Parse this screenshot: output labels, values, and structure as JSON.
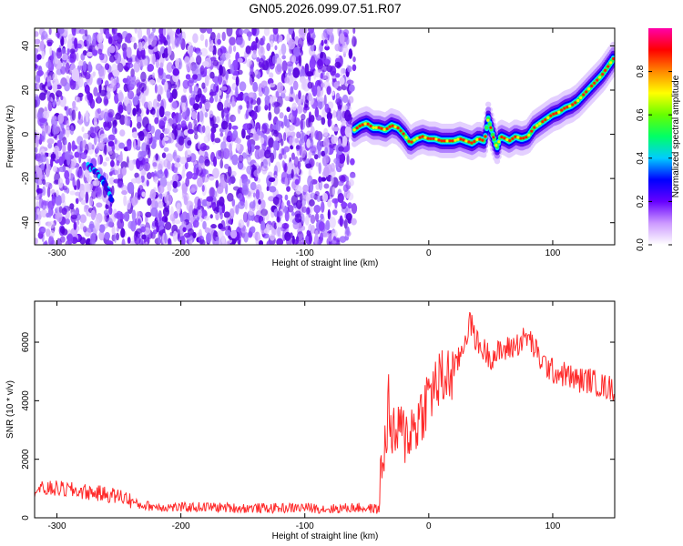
{
  "title": "GN05.2026.099.07.51.R07",
  "chart_data": [
    {
      "type": "heatmap",
      "xlabel": "Height of straight line (km)",
      "ylabel": "Frequency (Hz)",
      "xlim": [
        -318,
        150
      ],
      "ylim": [
        -50,
        48
      ],
      "xticks": [
        -300,
        -200,
        -100,
        0,
        100
      ],
      "yticks": [
        -40,
        -20,
        0,
        20,
        40
      ],
      "colorbar": {
        "label": "Normalized spectral amplitude",
        "range": [
          0,
          1
        ],
        "ticks": [
          0.0,
          0.2,
          0.4,
          0.6,
          0.8
        ],
        "colors": [
          "#ffffff",
          "#cc99ff",
          "#6600ff",
          "#0000ff",
          "#00ccff",
          "#00ff66",
          "#66ff00",
          "#ffff00",
          "#ff8800",
          "#ff0000",
          "#ff00aa"
        ]
      },
      "noise_region_x": [
        -318,
        -60
      ],
      "ridge": {
        "x": [
          -60,
          -55,
          -50,
          -45,
          -40,
          -35,
          -30,
          -25,
          -20,
          -15,
          -10,
          -5,
          0,
          5,
          10,
          15,
          20,
          25,
          30,
          35,
          40,
          45,
          48,
          52,
          55,
          58,
          62,
          65,
          70,
          75,
          80,
          85,
          90,
          95,
          100,
          105,
          110,
          115,
          120,
          125,
          130,
          135,
          140,
          145,
          150
        ],
        "y": [
          2,
          4,
          5,
          3,
          3,
          2,
          4,
          3,
          0,
          -4,
          -2,
          -1,
          -2,
          -2,
          -3,
          -3,
          -3,
          -2,
          -3,
          -4,
          -2,
          -3,
          7,
          -1,
          -6,
          -1,
          -2,
          -3,
          -1,
          -2,
          -1,
          3,
          5,
          7,
          9,
          10,
          12,
          13,
          15,
          18,
          21,
          24,
          27,
          31,
          35
        ]
      },
      "burst": {
        "x": [
          -275,
          -268,
          -262,
          -255
        ],
        "y": [
          -14,
          -17,
          -22,
          -30
        ]
      }
    },
    {
      "type": "line",
      "xlabel": "Height of straight line (km)",
      "ylabel": "SNR (10 * v/v)",
      "xlim": [
        -318,
        150
      ],
      "ylim": [
        0,
        7400
      ],
      "xticks": [
        -300,
        -200,
        -100,
        0,
        100
      ],
      "yticks": [
        0,
        2000,
        4000,
        6000
      ],
      "color": "#ff2a2a",
      "series": {
        "x": [
          -318,
          -300,
          -280,
          -260,
          -245,
          -235,
          -220,
          -200,
          -180,
          -150,
          -120,
          -100,
          -80,
          -60,
          -40,
          -38,
          -35,
          -32,
          -30,
          -25,
          -20,
          -15,
          -10,
          -5,
          0,
          5,
          10,
          15,
          20,
          25,
          30,
          33,
          40,
          50,
          60,
          70,
          80,
          85,
          90,
          100,
          110,
          120,
          130,
          140,
          150
        ],
        "values": [
          950,
          1000,
          900,
          800,
          700,
          450,
          380,
          350,
          370,
          330,
          330,
          350,
          300,
          350,
          300,
          1800,
          2500,
          4200,
          2500,
          3000,
          2800,
          3000,
          3200,
          3700,
          4200,
          4500,
          4700,
          4800,
          5000,
          5500,
          6200,
          6700,
          5900,
          5500,
          5700,
          5900,
          6200,
          5800,
          5400,
          5000,
          4900,
          4700,
          4700,
          4500,
          4400
        ]
      }
    }
  ]
}
